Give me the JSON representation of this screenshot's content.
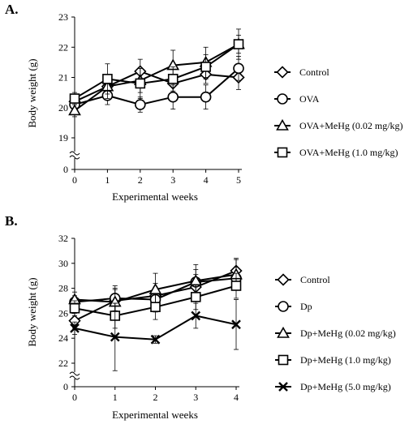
{
  "chart_data": [
    {
      "panel_label": "A.",
      "type": "line",
      "xlabel": "Experimental weeks",
      "ylabel": "Body weight (g)",
      "x": [
        0,
        1,
        2,
        3,
        4,
        5
      ],
      "xticks": [
        "0",
        "1",
        "2",
        "3",
        "4",
        "5"
      ],
      "yticks": [
        {
          "value": 19,
          "label": "19"
        },
        {
          "value": 20,
          "label": "20"
        },
        {
          "value": 21,
          "label": "21"
        },
        {
          "value": 22,
          "label": "22"
        },
        {
          "value": 23,
          "label": "23"
        }
      ],
      "axis_zero_label": "0",
      "ylim": [
        19,
        23
      ],
      "axis_break": true,
      "legend_position": "right",
      "series": [
        {
          "name": "Control",
          "marker": "diamond",
          "values": [
            20.2,
            20.7,
            21.2,
            20.8,
            21.1,
            21.0
          ],
          "errors": [
            0.2,
            0.3,
            0.4,
            0.3,
            0.3,
            0.4
          ]
        },
        {
          "name": "OVA",
          "marker": "circle",
          "values": [
            20.1,
            20.4,
            20.1,
            20.35,
            20.35,
            21.3
          ],
          "errors": [
            0.2,
            0.3,
            0.25,
            0.4,
            0.4,
            0.4
          ]
        },
        {
          "name": "OVA+MeHg (0.02 mg/kg)",
          "marker": "triangle",
          "values": [
            19.9,
            20.7,
            20.9,
            21.4,
            21.5,
            22.1
          ],
          "errors": [
            0.2,
            0.4,
            0.4,
            0.5,
            0.5,
            0.3
          ]
        },
        {
          "name": "OVA+MeHg (1.0 mg/kg)",
          "marker": "square",
          "values": [
            20.3,
            20.95,
            20.8,
            20.95,
            21.35,
            22.1
          ],
          "errors": [
            0.2,
            0.5,
            0.5,
            0.4,
            0.4,
            0.5
          ]
        }
      ]
    },
    {
      "panel_label": "B.",
      "type": "line",
      "xlabel": "Experimental weeks",
      "ylabel": "Body weight (g)",
      "x": [
        0,
        1,
        2,
        3,
        4
      ],
      "xticks": [
        "0",
        "1",
        "2",
        "3",
        "4"
      ],
      "yticks": [
        {
          "value": 22,
          "label": "22"
        },
        {
          "value": 24,
          "label": "24"
        },
        {
          "value": 26,
          "label": "26"
        },
        {
          "value": 28,
          "label": "28"
        },
        {
          "value": 30,
          "label": "30"
        },
        {
          "value": 32,
          "label": "32"
        }
      ],
      "axis_zero_label": "0",
      "ylim": [
        22,
        32
      ],
      "axis_break": true,
      "legend_position": "right",
      "series": [
        {
          "name": "Control",
          "marker": "diamond",
          "values": [
            25.4,
            27.0,
            27.4,
            28.1,
            29.4
          ],
          "errors": [
            0.6,
            1.0,
            1.0,
            1.0,
            1.0
          ]
        },
        {
          "name": "Dp",
          "marker": "circle",
          "values": [
            26.9,
            27.2,
            27.1,
            28.5,
            28.8
          ],
          "errors": [
            0.5,
            1.0,
            1.0,
            1.0,
            0.9
          ]
        },
        {
          "name": "Dp+MeHg (0.02 mg/kg)",
          "marker": "triangle",
          "values": [
            27.1,
            26.9,
            27.9,
            28.6,
            29.1
          ],
          "errors": [
            0.6,
            1.0,
            1.3,
            1.3,
            1.2
          ]
        },
        {
          "name": "Dp+MeHg (1.0 mg/kg)",
          "marker": "square",
          "values": [
            26.4,
            25.8,
            26.5,
            27.3,
            28.2
          ],
          "errors": [
            0.6,
            1.0,
            1.0,
            1.0,
            1.0
          ]
        },
        {
          "name": "Dp+MeHg (5.0 mg/kg)",
          "marker": "cross",
          "values": [
            24.8,
            24.1,
            23.9,
            25.8,
            25.1
          ],
          "errors": [
            0.5,
            2.7,
            0.3,
            1.0,
            2.0
          ]
        }
      ]
    }
  ]
}
